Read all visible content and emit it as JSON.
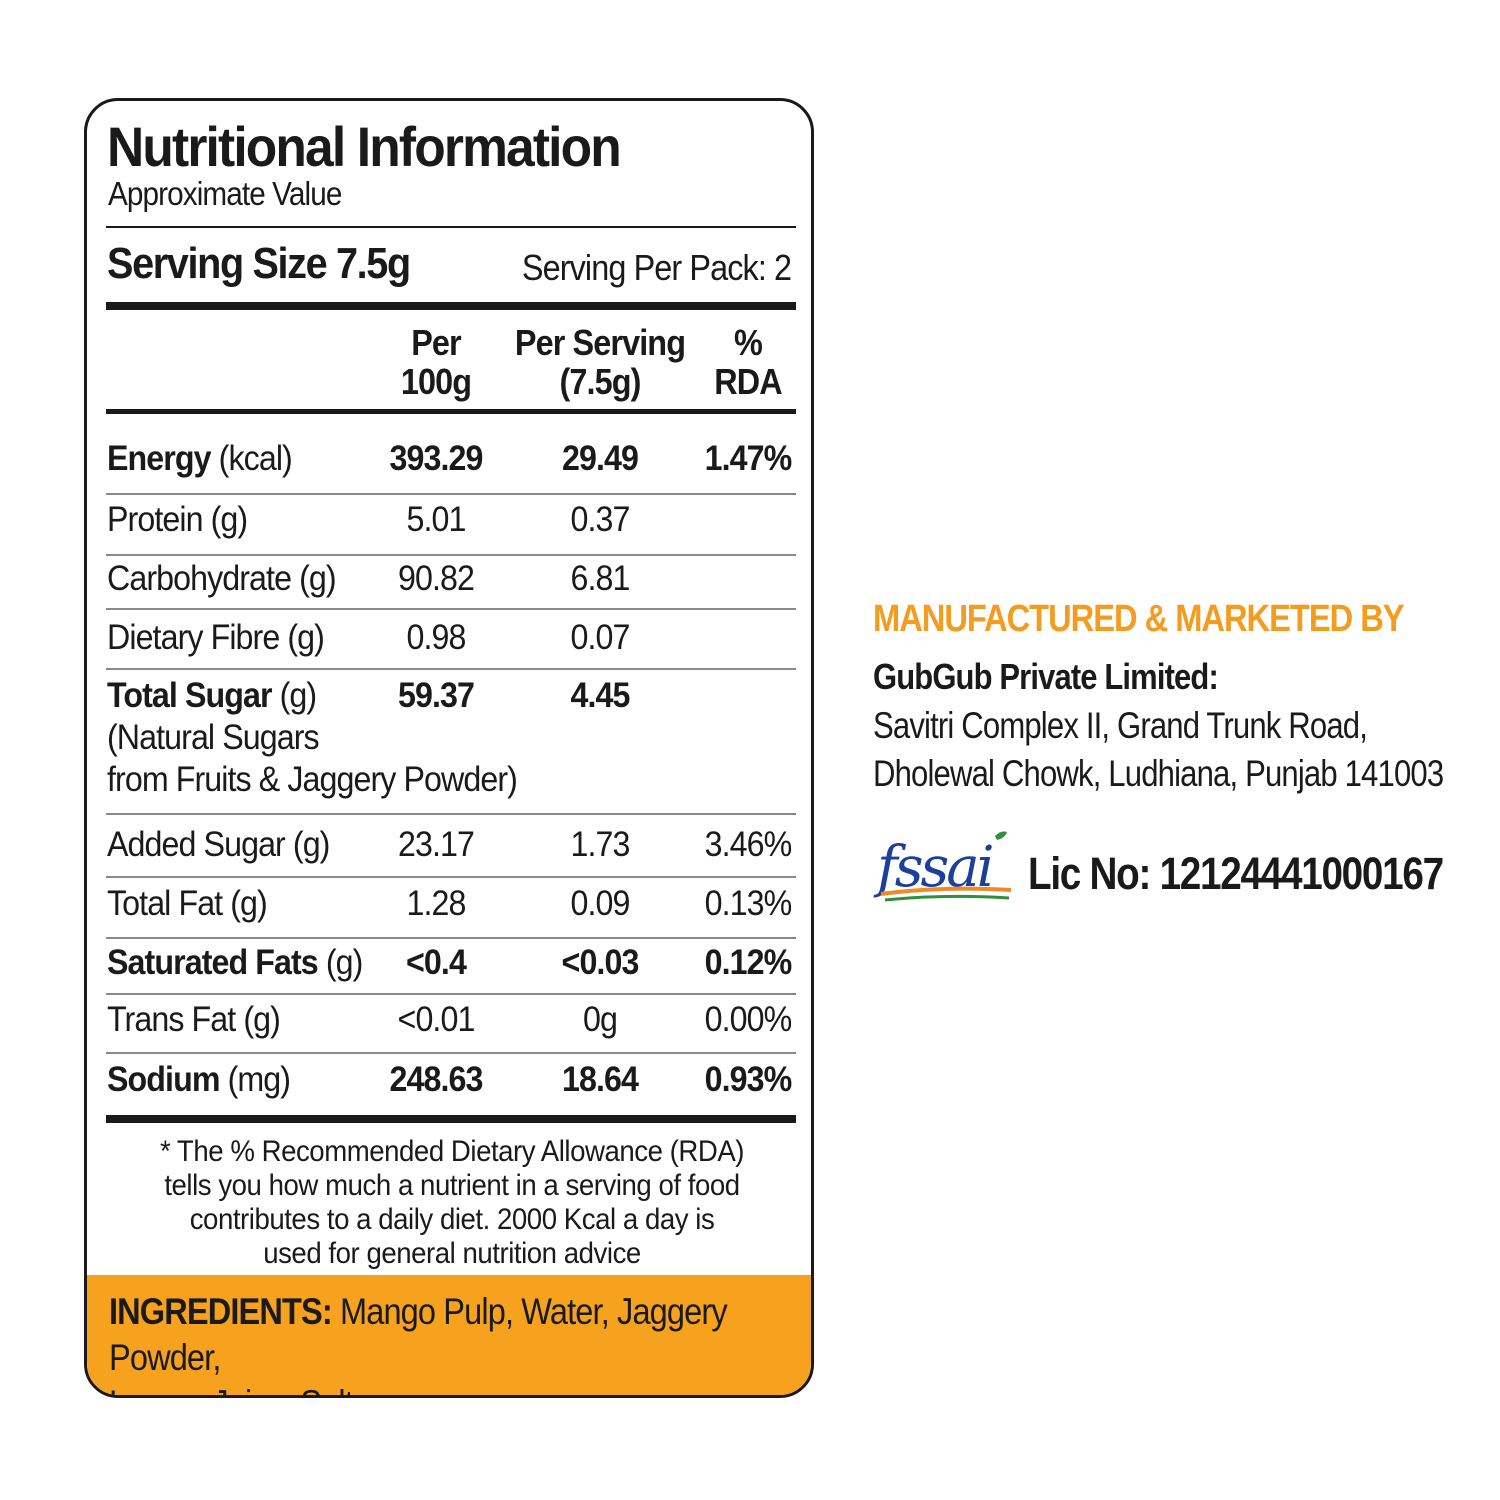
{
  "panel": {
    "title": "Nutritional Information",
    "subtitle": "Approximate Value",
    "serving_size": "Serving Size 7.5g",
    "serving_per_pack": "Serving Per Pack: 2",
    "columns": {
      "per100": [
        "Per",
        "100g"
      ],
      "perServing": [
        "Per Serving",
        "(7.5g)"
      ],
      "rda": [
        "%",
        "RDA"
      ]
    },
    "rows": [
      {
        "name": "Energy",
        "unit": " (kcal)",
        "per100": "393.29",
        "serving": "29.49",
        "rda": "1.47%",
        "bold": true
      },
      {
        "name": "Protein",
        "unit": " (g)",
        "per100": "5.01",
        "serving": "0.37",
        "rda": "",
        "bold": false
      },
      {
        "name": "Carbohydrate",
        "unit": " (g)",
        "per100": "90.82",
        "serving": "6.81",
        "rda": "",
        "bold": false
      },
      {
        "name": "Dietary Fibre",
        "unit": " (g)",
        "per100": "0.98",
        "serving": "0.07",
        "rda": "",
        "bold": false
      },
      {
        "name": "Total Sugar",
        "unit": " (g)",
        "note1": "(Natural Sugars",
        "note2": "from Fruits & Jaggery Powder)",
        "per100": "59.37",
        "serving": "4.45",
        "rda": "",
        "bold": true
      },
      {
        "name": "Added Sugar",
        "unit": " (g)",
        "per100": "23.17",
        "serving": "1.73",
        "rda": "3.46%",
        "bold": false
      },
      {
        "name": "Total Fat",
        "unit": " (g)",
        "per100": "1.28",
        "serving": "0.09",
        "rda": "0.13%",
        "bold": false
      },
      {
        "name": "Saturated Fats",
        "unit": " (g)",
        "per100": "<0.4",
        "serving": "<0.03",
        "rda": "0.12%",
        "bold": true
      },
      {
        "name": "Trans Fat",
        "unit": " (g)",
        "per100": "<0.01",
        "serving": "0g",
        "rda": "0.00%",
        "bold": false
      },
      {
        "name": "Sodium",
        "unit": " (mg)",
        "per100": "248.63",
        "serving": "18.64",
        "rda": "0.93%",
        "bold": true
      }
    ],
    "rda_note": [
      "* The %  Recommended Dietary Allowance (RDA)",
      "tells you how much a nutrient in a serving of food",
      "contributes to a daily diet. 2000 Kcal a day is",
      "used for general nutrition advice"
    ],
    "ingredients_label": "INGREDIENTS:",
    "ingredients_line1": " Mango Pulp, Water, Jaggery Powder,",
    "ingredients_line2": "Lemon Juice, Salt"
  },
  "manufacturer": {
    "heading": "MANUFACTURED & MARKETED BY",
    "company": "GubGub Private Limited:",
    "address": [
      "Savitri Complex II, Grand Trunk Road,",
      "Dholewal Chowk, Ludhiana, Punjab 141003"
    ],
    "logo_text": "fssai",
    "license": "Lic No: 12124441000167"
  },
  "colors": {
    "accent_orange": "#f6a21e",
    "heading_orange": "#f39c1f",
    "fssai_blue": "#1b3f9a",
    "fssai_orange": "#f08a24",
    "fssai_green": "#2f8f3a"
  }
}
